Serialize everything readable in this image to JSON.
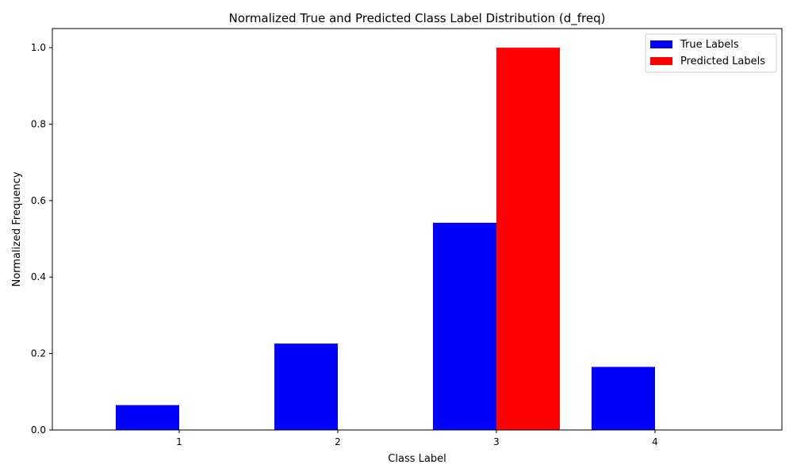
{
  "chart_data": {
    "type": "bar",
    "title": "Normalized True and Predicted Class Label Distribution (d_freq)",
    "xlabel": "Class Label",
    "ylabel": "Normalized Frequency",
    "categories": [
      "1",
      "2",
      "3",
      "4"
    ],
    "series": [
      {
        "name": "True Labels",
        "color": "#0000ff",
        "values": [
          0.065,
          0.226,
          0.542,
          0.165
        ]
      },
      {
        "name": "Predicted Labels",
        "color": "#ff0000",
        "values": [
          0.0,
          0.0,
          1.0,
          0.0
        ]
      }
    ],
    "ylim": [
      0,
      1.05
    ],
    "yticks": [
      "0.0",
      "0.2",
      "0.4",
      "0.6",
      "0.8",
      "1.0"
    ],
    "grid": false,
    "legend_position": "top-right"
  }
}
